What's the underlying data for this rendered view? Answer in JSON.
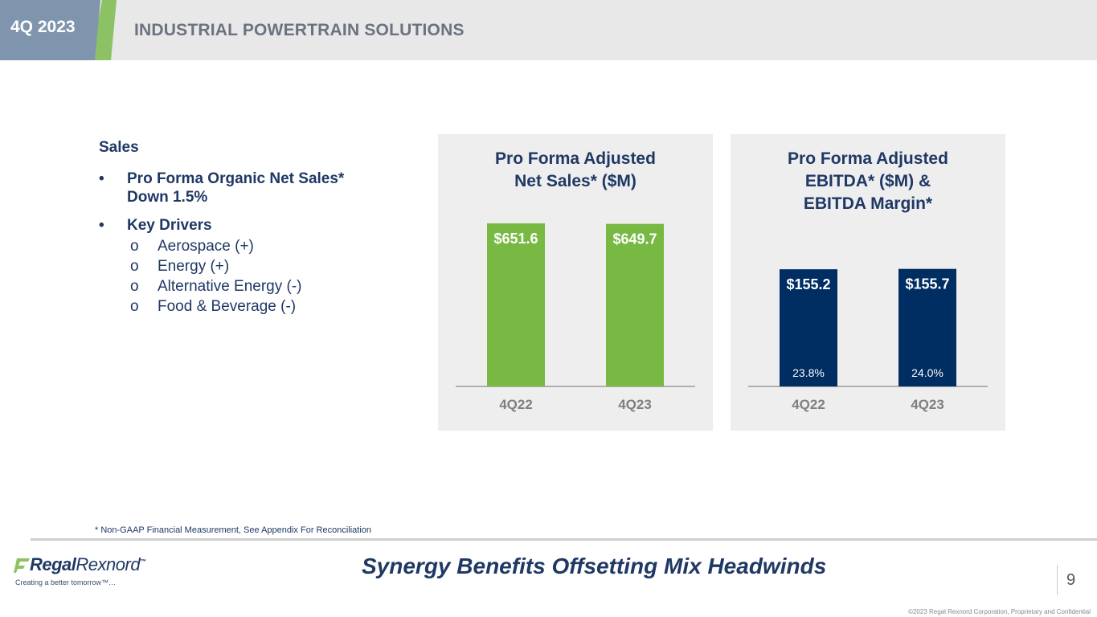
{
  "header": {
    "quarter": "4Q 2023",
    "title": "INDUSTRIAL POWERTRAIN SOLUTIONS"
  },
  "left": {
    "heading": "Sales",
    "bullets": [
      {
        "marker": "•",
        "text_line1": "Pro Forma Organic Net Sales*",
        "text_line2": "Down 1.5%"
      },
      {
        "marker": "•",
        "text_line1": "Key Drivers"
      }
    ],
    "drivers": [
      {
        "marker": "o",
        "text": "Aerospace (+)"
      },
      {
        "marker": "o",
        "text": "Energy (+)"
      },
      {
        "marker": "o",
        "text": "Alternative Energy (-)"
      },
      {
        "marker": "o",
        "text": "Food & Beverage (-)"
      }
    ]
  },
  "colors": {
    "green": "#77b943",
    "navy": "#002d62",
    "title": "#1f3864",
    "axis_label": "#7f7f7f"
  },
  "chart_data": [
    {
      "type": "bar",
      "title_lines": [
        "Pro Forma Adjusted",
        "Net Sales* ($M)"
      ],
      "categories": [
        "4Q22",
        "4Q23"
      ],
      "values": [
        651.6,
        649.7
      ],
      "value_labels": [
        "$651.6",
        "$649.7"
      ],
      "ylim": [
        0,
        700
      ],
      "color": "#77b943"
    },
    {
      "type": "bar",
      "title_lines": [
        "Pro Forma Adjusted",
        "EBITDA* ($M) &",
        "EBITDA Margin*"
      ],
      "categories": [
        "4Q22",
        "4Q23"
      ],
      "values": [
        155.2,
        155.7
      ],
      "value_labels": [
        "$155.2",
        "$155.7"
      ],
      "secondary_labels": [
        "23.8%",
        "24.0%"
      ],
      "ylim": [
        0,
        232
      ],
      "color": "#002d62"
    }
  ],
  "footer": {
    "footnote": "* Non-GAAP Financial Measurement, See Appendix For Reconciliation",
    "logo_bold": "Regal",
    "logo_thin": "Rexnord",
    "logo_tm": "™",
    "tagline": "Creating a better tomorrow™…",
    "headline": "Synergy Benefits Offsetting Mix Headwinds",
    "page_number": "9",
    "copyright": "©2023 Regal Rexnord Corporation, Proprietary and Confidential"
  }
}
